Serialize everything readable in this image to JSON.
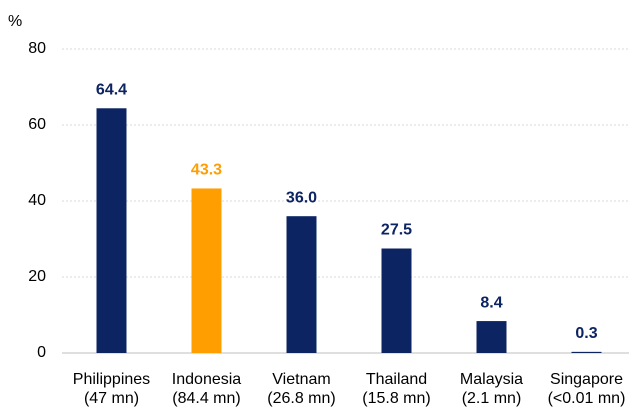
{
  "chart_data": {
    "type": "bar",
    "y_axis_label": "%",
    "categories": [
      [
        "Philippines",
        "(47 mn)"
      ],
      [
        "Indonesia",
        "(84.4 mn)"
      ],
      [
        "Vietnam",
        "(26.8 mn)"
      ],
      [
        "Thailand",
        "(15.8 mn)"
      ],
      [
        "Malaysia",
        "(2.1 mn)"
      ],
      [
        "Singapore",
        "(<0.01 mn)"
      ]
    ],
    "values": [
      64.4,
      43.3,
      36.0,
      27.5,
      8.4,
      0.3
    ],
    "value_labels": [
      "64.4",
      "43.3",
      "36.0",
      "27.5",
      "8.4",
      "0.3"
    ],
    "colors": [
      "#0d2462",
      "#ff9e00",
      "#0d2462",
      "#0d2462",
      "#0d2462",
      "#0d2462"
    ],
    "ylim": [
      0,
      80
    ],
    "yticks": [
      0,
      20,
      40,
      60,
      80
    ],
    "grid": true
  }
}
